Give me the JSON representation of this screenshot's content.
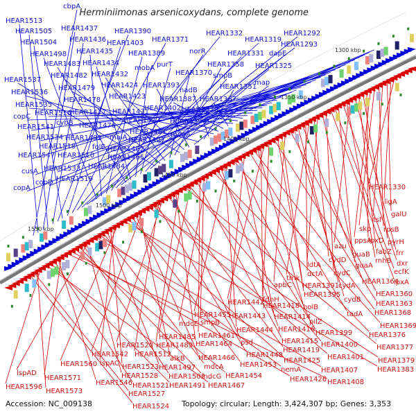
{
  "title": "Herminiimonas arsenicoxydans, complete genome",
  "footer": {
    "accession": "Accession: NC_009138",
    "summary": "Topology: circular; Length: 3,424,307 bp; Genes: 3,353"
  },
  "colors": {
    "forward": "#0000dd",
    "reverse": "#dd0000",
    "backbone": "#888888",
    "tick": "#2a8a2a"
  },
  "ruler_labels": [
    "1300 kbp",
    "1350 kbp",
    "1400 kbp",
    "1450 kbp",
    "1500 kbp",
    "1550 kbp"
  ],
  "blue_genes": [
    "cbpA",
    "HEAR1513",
    "HEAR1437",
    "HEAR1505",
    "HEAR1436",
    "HEAR1390",
    "HEAR1504",
    "HEAR1403",
    "HEAR1371",
    "HEAR1332",
    "HEAR1319",
    "HEAR1292",
    "HEAR1293",
    "HEAR1498",
    "HEAR1435",
    "HEAR1389",
    "norR",
    "HEAR1331",
    "dapE",
    "HEAR1483",
    "HEAR1434",
    "mobA",
    "purT",
    "smpB",
    "HEAR1325",
    "HEAR1537",
    "HEAR1482",
    "HEAR1432",
    "HEAR1370",
    "HEAR1358",
    "HEAR1479",
    "HEAR1424",
    "HEAR1393",
    "map",
    "HEAR1536",
    "HEAR1351",
    "nadB",
    "HEAR1478",
    "HEAR1423",
    "HEAR1387",
    "HEAR1367",
    "HEAR1535",
    "HEAR1402",
    "HEAR1378",
    "copC",
    "HEAR1516",
    "HEAR1477",
    "HEAR1431",
    "HEAR1422",
    "HEAR1394",
    "cybB",
    "HEAR1541",
    "HEAR1476",
    "HEAR1421",
    "moaA",
    "HEAR1534",
    "HEAR1492",
    "maiA",
    "HEAR1427",
    "HEAR1518",
    "folE",
    "HEAR1462",
    "HEAR1547",
    "HEAR1510",
    "HEAR1465",
    "HEAR1484",
    "cusA",
    "HEAR1533",
    "copD",
    "HEAR1519",
    "copA"
  ],
  "red_genes": [
    "HEAR1330",
    "ligA",
    "galU",
    "tsf",
    "rpsB",
    "skp",
    "ppsA",
    "lpxD",
    "pyrH",
    "fabZ",
    "frr",
    "azu",
    "rnhB",
    "dxr",
    "guaB",
    "ecfK",
    "lpxA",
    "cydC",
    "guaA",
    "ldtA",
    "cydD",
    "tmk",
    "dctA",
    "HEAR1364",
    "cydA",
    "cydB",
    "HEAR1360",
    "apbC",
    "HEAR1391",
    "HEAR1395",
    "HEAR1363",
    "fdnH",
    "HEAR1442",
    "HEAR1418",
    "holB",
    "HEAR1368",
    "tadA",
    "HEAR1443",
    "HEAR1414",
    "pilZ",
    "HEAR1369",
    "HEAR1455",
    "HEAR1444",
    "HEAR1416",
    "HEAR1399",
    "HEAR1376",
    "mdcE",
    "smpB",
    "HEAR1461",
    "HEAR1415",
    "HEAR1485",
    "HEAR1400",
    "HEAR1377",
    "HEAR1489",
    "HEAR1464",
    "psd",
    "HEAR1419",
    "HEAR1520",
    "HEAR1512",
    "HEAR1448",
    "HEAR1401",
    "HEAR1379",
    "HEAR1542",
    "alkB",
    "HEAR1466",
    "HEAR1453",
    "HEAR1425",
    "HEAR1383",
    "HEAR1560",
    "lspAC",
    "HEAR1523",
    "HEAR1497",
    "mdcA",
    "nemA",
    "HEAR1407",
    "lspAD",
    "HEAR1528",
    "HEAR1502",
    "mdcG",
    "HEAR1454",
    "HEAR1426",
    "HEAR1408",
    "HEAR1571",
    "HEAR1546",
    "HEAR1521",
    "HEAR1491",
    "HEAR1467",
    "HEAR1596",
    "HEAR1573",
    "HEAR1527",
    "HEAR1524"
  ]
}
